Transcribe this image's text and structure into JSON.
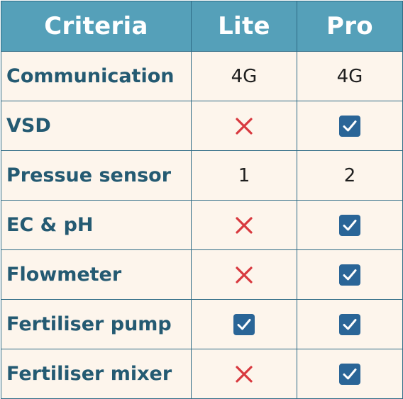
{
  "header": {
    "criteria": "Criteria",
    "lite": "Lite",
    "pro": "Pro"
  },
  "rows": [
    {
      "criteria": "Communication",
      "lite": {
        "kind": "text",
        "value": "4G"
      },
      "pro": {
        "kind": "text",
        "value": "4G"
      }
    },
    {
      "criteria": "VSD",
      "lite": {
        "kind": "icon",
        "icon": "cross-icon"
      },
      "pro": {
        "kind": "icon",
        "icon": "checkbox-checked-icon"
      }
    },
    {
      "criteria": "Pressue sensor",
      "lite": {
        "kind": "text",
        "value": "1"
      },
      "pro": {
        "kind": "text",
        "value": "2"
      }
    },
    {
      "criteria": "EC & pH",
      "lite": {
        "kind": "icon",
        "icon": "cross-icon"
      },
      "pro": {
        "kind": "icon",
        "icon": "checkbox-checked-icon"
      }
    },
    {
      "criteria": "Flowmeter",
      "lite": {
        "kind": "icon",
        "icon": "cross-icon"
      },
      "pro": {
        "kind": "icon",
        "icon": "checkbox-checked-icon"
      }
    },
    {
      "criteria": "Fertiliser pump",
      "lite": {
        "kind": "icon",
        "icon": "checkbox-checked-icon"
      },
      "pro": {
        "kind": "icon",
        "icon": "checkbox-checked-icon"
      }
    },
    {
      "criteria": "Fertiliser mixer",
      "lite": {
        "kind": "icon",
        "icon": "cross-icon"
      },
      "pro": {
        "kind": "icon",
        "icon": "checkbox-checked-icon"
      }
    }
  ],
  "colors": {
    "header_bg": "#55a0b9",
    "row_bg": "#fdf5ec",
    "criteria_text": "#245a72",
    "border": "#2e6b86",
    "cross": "#d8393f",
    "checkbox": "#2a6597"
  }
}
